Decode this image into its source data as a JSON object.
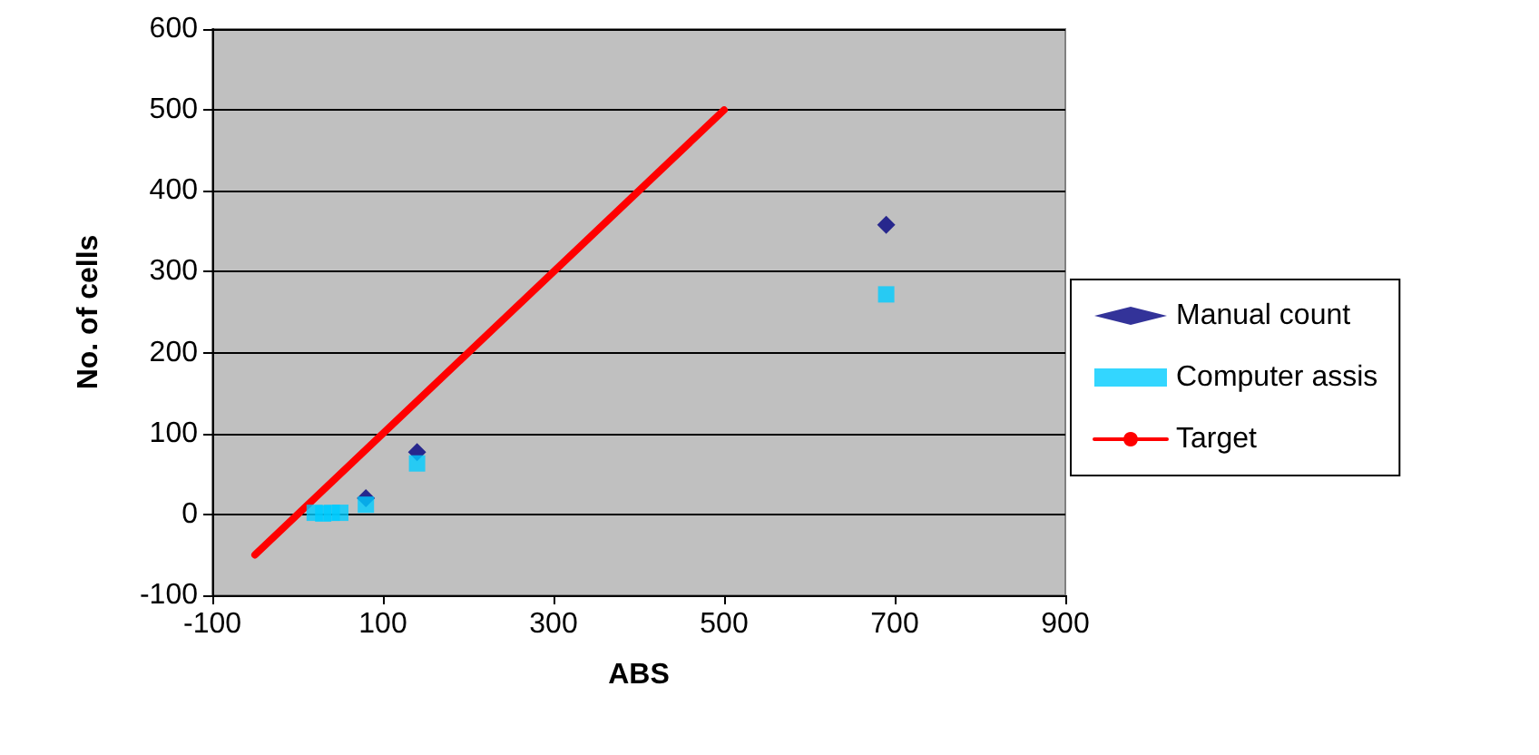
{
  "chart_data": {
    "type": "scatter",
    "xlabel": "ABS",
    "ylabel": "No. of cells",
    "xlim": [
      -100,
      900
    ],
    "xticks": [
      -100,
      100,
      300,
      500,
      700,
      900
    ],
    "ylim": [
      -100,
      600
    ],
    "yticks": [
      -100,
      0,
      100,
      200,
      300,
      400,
      500,
      600
    ],
    "grid": "y",
    "legend": "right",
    "series": [
      {
        "name": "Manual count",
        "color": "#000080",
        "marker": "diamond",
        "x": [
          80,
          140,
          690
        ],
        "values": [
          20,
          77,
          358
        ]
      },
      {
        "name": "Computer assis",
        "color": "#00ccff",
        "marker": "square",
        "x": [
          20,
          30,
          40,
          50,
          80,
          140,
          690
        ],
        "values": [
          2,
          1,
          2,
          2,
          12,
          63,
          272
        ]
      },
      {
        "name": "Target",
        "type": "line",
        "color": "#ff0000",
        "marker": "none",
        "x": [
          -50,
          500
        ],
        "values": [
          -50,
          500
        ]
      }
    ]
  }
}
